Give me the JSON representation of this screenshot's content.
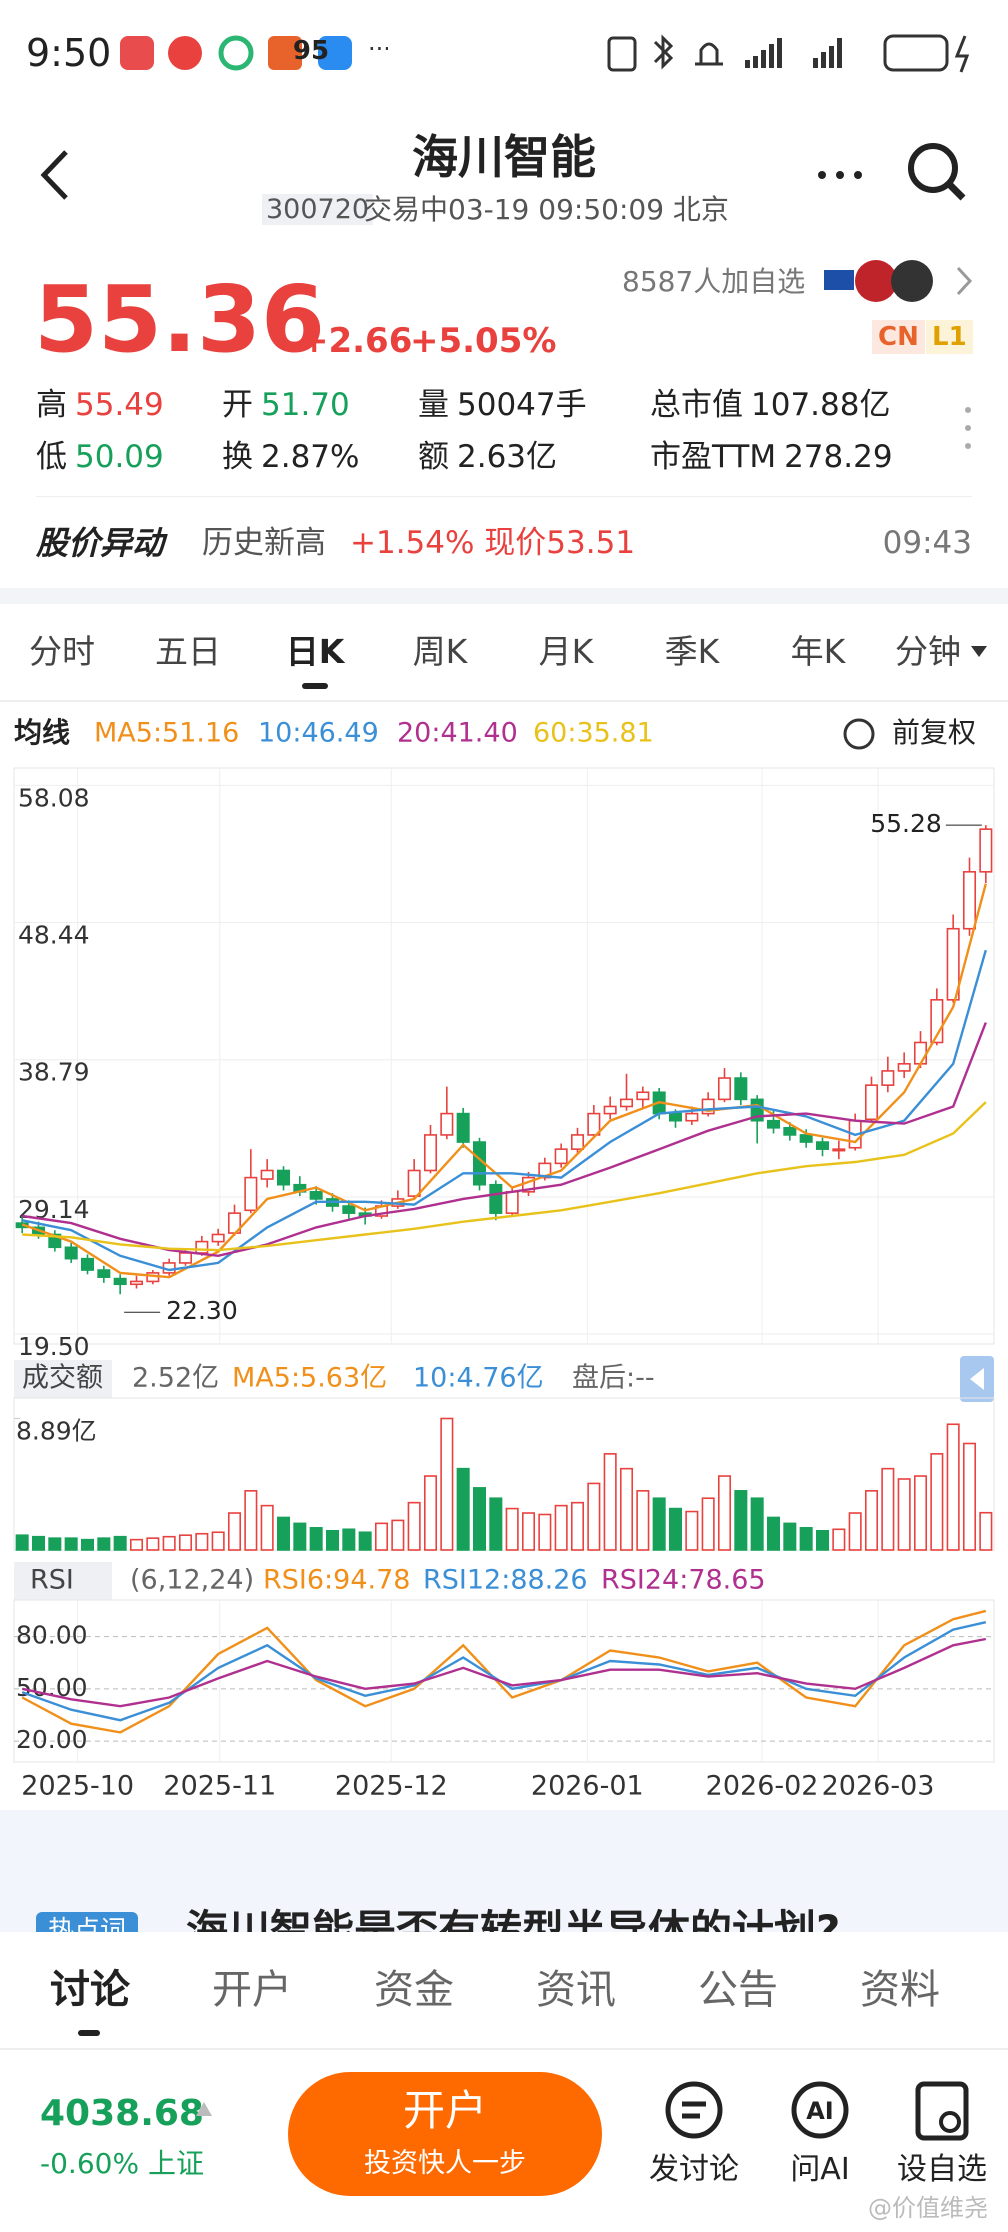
{
  "status_bar": {
    "time": "9:50",
    "battery": "95"
  },
  "header": {
    "title": "海川智能",
    "code": "300720",
    "status": "交易中03-19 09:50:09 北京"
  },
  "quote": {
    "price": "55.36",
    "change": "+2.66",
    "change_pct": "+5.05%",
    "watchers": "8587人加自选",
    "tags": [
      "CN",
      "L1"
    ],
    "stats": [
      {
        "label": "高",
        "value": "55.49"
      },
      {
        "label": "开",
        "value": "51.70"
      },
      {
        "label": "量",
        "value": "50047手"
      },
      {
        "label": "总市值",
        "value": "107.88亿"
      },
      {
        "label": "低",
        "value": "50.09"
      },
      {
        "label": "换",
        "value": "2.87%"
      },
      {
        "label": "额",
        "value": "2.63亿"
      },
      {
        "label": "市盈TTM",
        "value": "278.29"
      }
    ]
  },
  "alert": {
    "label": "股价异动",
    "text": "历史新高",
    "change": "+1.54% 现价53.51",
    "time": "09:43"
  },
  "tabs": [
    "分时",
    "五日",
    "日K",
    "周K",
    "月K",
    "季K",
    "年K",
    "分钟"
  ],
  "chart_data": [
    {
      "type": "candlestick",
      "legend_title": "均线",
      "adjust": "前复权",
      "ylim": [
        18.8,
        59.3
      ],
      "yticks": [
        58.08,
        48.44,
        38.79,
        29.14,
        {
          "value": 19.5,
          "label": "19.50"
        }
      ],
      "grid": true,
      "max_label": 55.28,
      "min_label": {
        "value": 22.3,
        "label": "22.30"
      },
      "up_color": "#e8413e",
      "down_color": "#17a05a",
      "candles": [
        [
          27.3,
          27.8,
          26.6,
          27.0
        ],
        [
          27.0,
          27.4,
          26.2,
          26.5
        ],
        [
          26.5,
          26.8,
          25.3,
          25.6
        ],
        [
          25.6,
          25.9,
          24.5,
          24.8
        ],
        [
          24.8,
          25.1,
          23.7,
          24.0
        ],
        [
          24.0,
          24.3,
          23.1,
          23.5
        ],
        [
          23.4,
          23.7,
          22.3,
          23.0
        ],
        [
          23.0,
          23.6,
          22.7,
          23.2
        ],
        [
          23.2,
          24.0,
          23.0,
          23.8
        ],
        [
          23.8,
          24.8,
          23.6,
          24.5
        ],
        [
          24.5,
          25.5,
          24.3,
          25.2
        ],
        [
          25.2,
          26.4,
          25.0,
          26.0
        ],
        [
          26.0,
          26.9,
          25.7,
          26.5
        ],
        [
          26.6,
          28.6,
          26.4,
          28.0
        ],
        [
          28.2,
          32.5,
          28.0,
          30.5
        ],
        [
          30.4,
          31.8,
          29.8,
          31.0
        ],
        [
          31.0,
          31.3,
          29.6,
          30.0
        ],
        [
          30.0,
          30.6,
          29.2,
          29.5
        ],
        [
          29.5,
          29.9,
          28.6,
          29.0
        ],
        [
          29.0,
          29.4,
          28.1,
          28.5
        ],
        [
          28.5,
          28.9,
          27.6,
          28.0
        ],
        [
          28.0,
          28.4,
          27.2,
          27.8
        ],
        [
          27.8,
          28.9,
          27.6,
          28.5
        ],
        [
          28.5,
          29.6,
          28.3,
          29.0
        ],
        [
          29.2,
          31.8,
          29.0,
          31.0
        ],
        [
          31.0,
          34.2,
          30.8,
          33.5
        ],
        [
          33.5,
          36.9,
          33.2,
          35.0
        ],
        [
          35.0,
          35.4,
          32.6,
          33.0
        ],
        [
          33.0,
          33.3,
          29.6,
          30.0
        ],
        [
          30.0,
          30.3,
          27.5,
          28.0
        ],
        [
          28.0,
          29.9,
          27.8,
          29.5
        ],
        [
          29.5,
          30.9,
          29.2,
          30.5
        ],
        [
          30.5,
          31.9,
          30.3,
          31.5
        ],
        [
          31.5,
          32.9,
          31.2,
          32.5
        ],
        [
          32.5,
          34.0,
          32.2,
          33.5
        ],
        [
          33.5,
          35.6,
          33.3,
          35.0
        ],
        [
          35.0,
          36.2,
          34.6,
          35.5
        ],
        [
          35.5,
          37.8,
          35.2,
          36.0
        ],
        [
          36.0,
          36.9,
          35.4,
          36.5
        ],
        [
          36.5,
          36.8,
          34.6,
          35.0
        ],
        [
          35.0,
          35.3,
          34.0,
          34.5
        ],
        [
          34.5,
          35.5,
          34.2,
          35.0
        ],
        [
          35.0,
          36.5,
          34.8,
          36.0
        ],
        [
          36.0,
          38.2,
          35.8,
          37.5
        ],
        [
          37.5,
          37.9,
          35.6,
          36.0
        ],
        [
          36.0,
          36.3,
          32.9,
          34.5
        ],
        [
          34.5,
          35.2,
          33.6,
          34.0
        ],
        [
          34.0,
          34.4,
          33.1,
          33.5
        ],
        [
          33.5,
          33.9,
          32.6,
          33.0
        ],
        [
          33.0,
          33.3,
          32.0,
          32.5
        ],
        [
          32.5,
          33.1,
          31.8,
          32.5
        ],
        [
          32.6,
          35.0,
          32.4,
          34.5
        ],
        [
          34.6,
          37.6,
          34.4,
          37.0
        ],
        [
          37.0,
          39.0,
          36.5,
          38.0
        ],
        [
          38.0,
          39.3,
          37.5,
          38.5
        ],
        [
          38.5,
          40.8,
          38.2,
          40.0
        ],
        [
          40.0,
          43.8,
          39.8,
          43.0
        ],
        [
          43.0,
          49.0,
          42.8,
          48.0
        ],
        [
          48.0,
          53.0,
          47.5,
          52.0
        ],
        [
          52.0,
          55.28,
          51.2,
          55.0
        ]
      ],
      "series": [
        {
          "name": "MA5:51.16",
          "color": "#f0901a",
          "x": [
            0,
            3,
            6,
            9,
            12,
            15,
            18,
            21,
            24,
            27,
            30,
            33,
            36,
            39,
            42,
            45,
            48,
            51,
            54,
            57,
            59
          ],
          "values": [
            27.2,
            26.0,
            23.8,
            23.5,
            25.3,
            29.0,
            29.8,
            28.2,
            29.0,
            32.8,
            29.8,
            31.0,
            34.5,
            35.8,
            35.2,
            35.6,
            33.6,
            33.0,
            36.5,
            42.5,
            51.16
          ]
        },
        {
          "name": "10:46.49",
          "color": "#3a8fd6",
          "x": [
            0,
            3,
            6,
            9,
            12,
            15,
            18,
            21,
            24,
            27,
            30,
            33,
            36,
            39,
            42,
            45,
            48,
            51,
            54,
            57,
            59
          ],
          "values": [
            27.5,
            26.8,
            25.0,
            24.0,
            24.5,
            27.0,
            28.8,
            28.8,
            28.6,
            30.8,
            30.8,
            30.5,
            33.0,
            35.0,
            35.3,
            35.5,
            34.8,
            33.5,
            34.5,
            38.5,
            46.49
          ]
        },
        {
          "name": "20:41.40",
          "color": "#b0308f",
          "x": [
            0,
            3,
            6,
            9,
            12,
            15,
            18,
            21,
            24,
            27,
            30,
            33,
            36,
            39,
            42,
            45,
            48,
            51,
            54,
            57,
            59
          ],
          "values": [
            27.8,
            27.3,
            26.2,
            25.4,
            25.0,
            25.8,
            27.0,
            27.8,
            28.3,
            29.0,
            29.5,
            30.0,
            31.2,
            32.5,
            33.8,
            34.8,
            35.0,
            34.5,
            34.3,
            35.5,
            41.4
          ]
        },
        {
          "name": "60:35.81",
          "color": "#e8c21a",
          "x": [
            0,
            3,
            6,
            9,
            12,
            15,
            18,
            21,
            24,
            27,
            30,
            33,
            36,
            39,
            42,
            45,
            48,
            51,
            54,
            57,
            59
          ],
          "values": [
            26.5,
            26.3,
            25.8,
            25.5,
            25.4,
            25.7,
            26.1,
            26.5,
            26.9,
            27.4,
            27.8,
            28.2,
            28.8,
            29.4,
            30.1,
            30.8,
            31.3,
            31.6,
            32.1,
            33.6,
            35.81
          ]
        }
      ]
    },
    {
      "type": "bar",
      "title": "成交额",
      "ylim": [
        0,
        9.6
      ],
      "yticks": [
        {
          "value": 8.89,
          "label": "8.89亿"
        }
      ],
      "legend": [
        {
          "text": "2.52亿",
          "color": "#666666"
        },
        {
          "text": "MA5:5.63亿",
          "color": "#f0901a"
        },
        {
          "text": "10:4.76亿",
          "color": "#3a8fd6"
        },
        {
          "text": "盘后:--",
          "color": "#666666"
        }
      ],
      "values": [
        1.0,
        0.9,
        0.8,
        0.8,
        0.7,
        0.8,
        0.9,
        0.7,
        0.8,
        0.9,
        1.0,
        1.1,
        1.2,
        2.5,
        4.0,
        3.0,
        2.2,
        1.8,
        1.5,
        1.3,
        1.4,
        1.2,
        1.8,
        2.0,
        3.2,
        5.0,
        8.89,
        5.5,
        4.2,
        3.5,
        2.8,
        2.5,
        2.4,
        3.0,
        3.2,
        4.5,
        6.5,
        5.5,
        4.0,
        3.5,
        2.8,
        2.6,
        3.5,
        5.0,
        4.0,
        3.5,
        2.2,
        1.8,
        1.5,
        1.3,
        1.4,
        2.5,
        4.0,
        5.5,
        4.8,
        5.0,
        6.5,
        8.5,
        7.2,
        2.52
      ]
    },
    {
      "type": "line",
      "title": "RSI",
      "params": "(6,12,24)",
      "ylim": [
        12,
        97
      ],
      "yticks": [
        {
          "value": 80,
          "label": "80.00"
        },
        {
          "value": 50,
          "label": "50.00"
        },
        {
          "value": 20,
          "label": "20.00"
        }
      ],
      "grid": true,
      "xticks": [
        {
          "value": 3.4,
          "label": "2025-10"
        },
        {
          "value": 12.1,
          "label": "2025-11"
        },
        {
          "value": 22.6,
          "label": "2025-12"
        },
        {
          "value": 34.6,
          "label": "2026-01"
        },
        {
          "value": 45.3,
          "label": "2026-02"
        },
        {
          "value": 52.4,
          "label": "2026-03"
        }
      ],
      "series": [
        {
          "name": "RSI6:94.78",
          "color": "#f0901a",
          "x": [
            0,
            3,
            6,
            9,
            12,
            15,
            18,
            21,
            24,
            27,
            30,
            33,
            36,
            39,
            42,
            45,
            48,
            51,
            54,
            57,
            59
          ],
          "values": [
            45,
            30,
            25,
            40,
            70,
            85,
            55,
            40,
            50,
            75,
            45,
            55,
            72,
            68,
            60,
            65,
            45,
            40,
            75,
            90,
            94.78
          ]
        },
        {
          "name": "RSI12:88.26",
          "color": "#3a8fd6",
          "x": [
            0,
            3,
            6,
            9,
            12,
            15,
            18,
            21,
            24,
            27,
            30,
            33,
            36,
            39,
            42,
            45,
            48,
            51,
            54,
            57,
            59
          ],
          "values": [
            48,
            38,
            32,
            42,
            62,
            75,
            56,
            46,
            52,
            68,
            50,
            55,
            66,
            64,
            58,
            62,
            50,
            46,
            68,
            84,
            88.26
          ]
        },
        {
          "name": "RSI24:78.65",
          "color": "#b0308f",
          "x": [
            0,
            3,
            6,
            9,
            12,
            15,
            18,
            21,
            24,
            27,
            30,
            33,
            36,
            39,
            42,
            45,
            48,
            51,
            54,
            57,
            59
          ],
          "values": [
            50,
            44,
            40,
            45,
            56,
            66,
            57,
            50,
            53,
            62,
            52,
            55,
            61,
            61,
            57,
            59,
            53,
            50,
            62,
            75,
            78.65
          ]
        }
      ]
    }
  ],
  "news": {
    "tag": "热点词",
    "text": "海川智能是否有转型半导体的计划?"
  },
  "nav": [
    "讨论",
    "开户",
    "资金",
    "资讯",
    "公告",
    "资料"
  ],
  "footer": {
    "index_value": "4038.68",
    "index_change": "-0.60% 上证",
    "button": "开户",
    "button_sub": "投资快人一步",
    "actions": [
      "发讨论",
      "问AI",
      "设自选"
    ],
    "watermark": "@价值维尧"
  }
}
